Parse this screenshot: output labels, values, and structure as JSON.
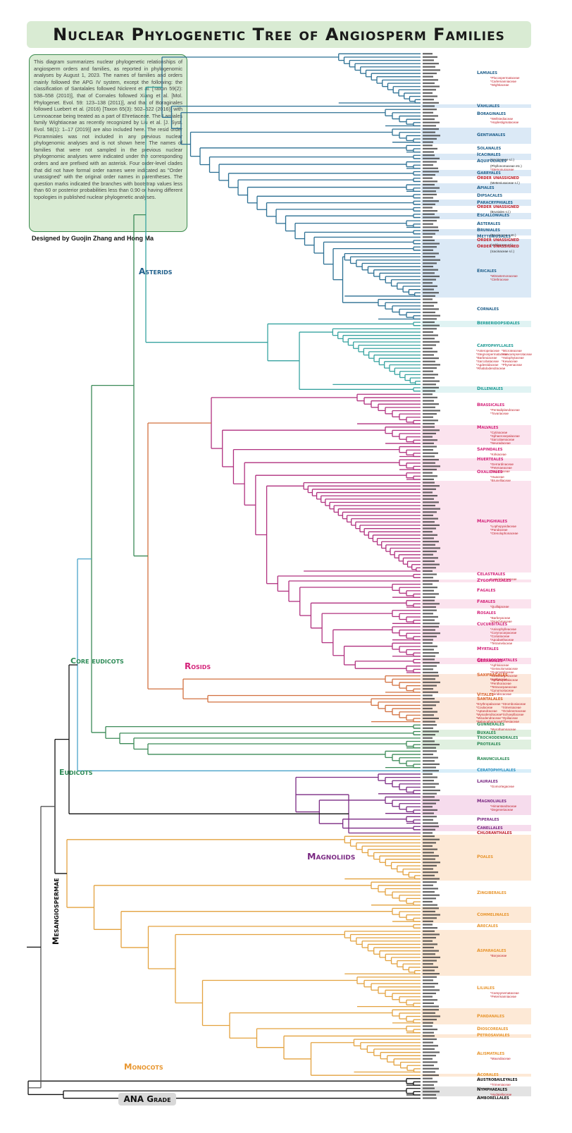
{
  "title": "Nuclear Phylogenetic Tree of Angiosperm Families",
  "description": "This diagram summarizes nuclear phylogenetic relationships of angiosperm orders and families, as reported in phylogenomic analyses by August 1, 2023. The names of families and orders mainly followed the APG IV system, except the following: the classification of Santalales followed Nickrent et al. [Taxon 59(2): 538–558 (2010)], that of Cornales followed Xiang et al. [Mol. Phylogenet. Evol. 59: 123–138 (2011)], and that of Boraginales followed Luebert et al. (2016) [Taxon 65(3): 502–522 (2016)] with Lennoaceae being treated as a part of Ehretiaceae. The Lamiales family Wightiaceae as recently recognized by Liu et al. [J. Syst. Evol. 58(1): 1–17 (2019)] are also included here. The resid order Picramniales was not included in any previous nuclear phylogenomic analyses and is not shown here. The names of families that were not sampled in the previous nuclear phylogenomic analyses were indicated under the corresponding orders and are prefixed with an asterisk. Four order-level clades that did not have formal order names were indicated as \"Order unassigned\" with the original order names in parentheses. The question marks indicated the branches with bootstrap values less than 60 or posterior probabilities less than 0.90 or having different topologies in published nuclear phylogenetic analyses.",
  "credit": "Designed by Guojin Zhang and Hong Ma",
  "clades": [
    {
      "name": "Asterids",
      "color": "#1f5f8b"
    },
    {
      "name": "Core eudicots",
      "color": "#2e8b57"
    },
    {
      "name": "Rosids",
      "color": "#d4237a"
    },
    {
      "name": "Eudicots",
      "color": "#2e8b57"
    },
    {
      "name": "Magnoliids",
      "color": "#7b2a83"
    },
    {
      "name": "Mesangiospermae",
      "color": "#111111"
    },
    {
      "name": "Monocots",
      "color": "#e8962f"
    },
    {
      "name": "ANA Grade",
      "color": "#111111"
    }
  ],
  "orders": [
    {
      "name": "Lamiales",
      "group": "asterid",
      "leaves": 16,
      "notes": [
        "*Plocospermataceae",
        "*Carlemanniaceae",
        "*Wightiaceae"
      ],
      "band": false
    },
    {
      "name": "Vahliales",
      "group": "asterid",
      "leaves": 1,
      "notes": [],
      "band": true
    },
    {
      "name": "Boraginales",
      "group": "asterid",
      "leaves": 6,
      "notes": [
        "*Wellstediaceae",
        "*Hoplestigmataceae"
      ],
      "band": false
    },
    {
      "name": "Gentianales",
      "group": "asterid",
      "leaves": 5,
      "notes": [],
      "band": true
    },
    {
      "name": "Solanales",
      "group": "asterid",
      "leaves": 3,
      "notes": [],
      "band": false
    },
    {
      "name": "Icacinales",
      "group": "asterid",
      "leaves": 2,
      "notes": [
        "(Icacinaceae s.l.)"
      ],
      "band": true
    },
    {
      "name": "Aquifoliales",
      "group": "asterid",
      "leaves": 3,
      "notes": [
        "(Phyllonomaceae etc.)",
        "*Stemonuraceae"
      ],
      "band": false
    },
    {
      "name": "Garryales",
      "group": "asterid",
      "leaves": 2,
      "notes": [],
      "band": true
    },
    {
      "name": "Order unassigned",
      "group": "asterid",
      "leaves": 2,
      "notes": [
        "(Metteniusaceae s.l.)"
      ],
      "band": false,
      "flag": true
    },
    {
      "name": "Apiales",
      "group": "asterid",
      "leaves": 3,
      "notes": [],
      "band": true
    },
    {
      "name": "Dipsacales",
      "group": "asterid",
      "leaves": 2,
      "notes": [],
      "band": false
    },
    {
      "name": "Paracryphiales",
      "group": "asterid",
      "leaves": 2,
      "notes": [],
      "band": true
    },
    {
      "name": "Order unassigned",
      "group": "asterid",
      "leaves": 2,
      "notes": [
        "(Bruniales s.l.)"
      ],
      "band": false,
      "flag": true
    },
    {
      "name": "Escalloniales",
      "group": "asterid",
      "leaves": 2,
      "notes": [],
      "band": true
    },
    {
      "name": "Asterales",
      "group": "asterid",
      "leaves": 3,
      "notes": [],
      "band": false
    },
    {
      "name": "Bruniales",
      "group": "asterid",
      "leaves": 2,
      "notes": [
        "(Bruniaceae s.str.)"
      ],
      "band": true
    },
    {
      "name": "Metteniusales",
      "group": "asterid",
      "leaves": 1,
      "notes": [],
      "band": false
    },
    {
      "name": "Order unassigned",
      "group": "asterid",
      "leaves": 2,
      "notes": [
        "(Vahliaceae s.l.)"
      ],
      "band": true,
      "flag": true
    },
    {
      "name": "Order unassigned",
      "group": "asterid",
      "leaves": 2,
      "notes": [
        "(Icacinaceae s.l.)"
      ],
      "band": true,
      "flag": true
    },
    {
      "name": "Ericales",
      "group": "asterid",
      "leaves": 14,
      "notes": [
        "*Mitrastemonaceae",
        "*Clethraceae"
      ],
      "band": true
    },
    {
      "name": "Cornales",
      "group": "asterid",
      "leaves": 7,
      "notes": [],
      "band": false
    },
    {
      "name": "Berberidopsidales",
      "group": "caryo",
      "leaves": 2,
      "notes": [],
      "band": true
    },
    {
      "name": "Caryophyllales",
      "group": "caryo",
      "leaves": 18,
      "notes": [
        "*Asteropeiaceae",
        "*Microteaceae",
        "*Stegnospermataceae",
        "*Anacampserotaceae",
        "*Barbeuiaceae",
        "*Halophytaceae",
        "*Sarcobataceae",
        "*Kewaceae",
        "*Agdestidaceae",
        "*Physenaceae",
        "*Rhabdodendraceae"
      ],
      "band": false
    },
    {
      "name": "Dilleniales",
      "group": "caryo",
      "leaves": 2,
      "notes": [],
      "band": true
    },
    {
      "name": "Brassicales",
      "group": "rosid",
      "leaves": 10,
      "notes": [
        "*Pentadiplandraceae",
        "*Tovariaceae"
      ],
      "band": false
    },
    {
      "name": "Malvales",
      "group": "rosid",
      "leaves": 6,
      "notes": [
        "*Cytinaceae",
        "*Sphaerosepalaceae",
        "*Sarcolaenaceae",
        "*Neuradaceae"
      ],
      "band": true
    },
    {
      "name": "Sapindales",
      "group": "rosid",
      "leaves": 4,
      "notes": [
        "*Kirkiaceae"
      ],
      "band": false
    },
    {
      "name": "Huerteales",
      "group": "rosid",
      "leaves": 4,
      "notes": [
        "*Gerrardinaceae",
        "*Petenaeaceae",
        "*Tapisciaceae"
      ],
      "band": true
    },
    {
      "name": "Oxalidales",
      "group": "rosid",
      "leaves": 3,
      "notes": [
        "*Huaceae",
        "*Brunelliaceae"
      ],
      "band": false
    },
    {
      "name": "Malpighiales",
      "group": "rosid",
      "leaves": 28,
      "notes": [
        "*Lophopyxidaceae",
        "*Pandaceae",
        "*Ctenolophonaceae"
      ],
      "band": true
    },
    {
      "name": "Celastrales",
      "group": "rosid",
      "leaves": 2,
      "notes": [
        "*Lepidobotryaceae"
      ],
      "band": false
    },
    {
      "name": "Zygophyllales",
      "group": "rosid",
      "leaves": 1,
      "notes": [],
      "band": true
    },
    {
      "name": "Fagales",
      "group": "rosid",
      "leaves": 5,
      "notes": [],
      "band": false
    },
    {
      "name": "Fabales",
      "group": "rosid",
      "leaves": 3,
      "notes": [
        "*Quillajaceae"
      ],
      "band": true
    },
    {
      "name": "Rosales",
      "group": "rosid",
      "leaves": 5,
      "notes": [
        "*Barbeyaceae",
        "*Dirachmaceae"
      ],
      "band": false
    },
    {
      "name": "Cucurbitales",
      "group": "rosid",
      "leaves": 5,
      "notes": [
        "*Anisophylleaceae",
        "*Corynocarpaceae",
        "*Coriariaceae",
        "*Apodanthaceae",
        "*Tetramelaceae"
      ],
      "band": true
    },
    {
      "name": "Myrtales",
      "group": "rosid",
      "leaves": 5,
      "notes": [],
      "band": false
    },
    {
      "name": "Geraniales",
      "group": "rosid",
      "leaves": 2,
      "notes": [],
      "band": true
    },
    {
      "name": "Crossosomatales",
      "group": "rosid",
      "leaves": 3,
      "notes": [
        "*Aphloiaceae",
        "*Geissolomataceae",
        "*Guamatelaceae",
        "*Strasburgeriaceae",
        "*Ixerbaceae"
      ],
      "band": false
    },
    {
      "name": "Saxifragales",
      "group": "saxi",
      "leaves": 6,
      "notes": [
        "*Aphanopetalaceae",
        "*Penthoraceae",
        "*Tetracarpaeaceae",
        "*Cynomoriaceae",
        "*Peridiscaceae"
      ],
      "band": true
    },
    {
      "name": "Vitales",
      "group": "saxi",
      "leaves": 1,
      "notes": [],
      "band": false
    },
    {
      "name": "Santalales",
      "group": "saxi",
      "leaves": 8,
      "notes": [
        "*Erythropalaceae",
        "*Strombosiaceae",
        "*Coulaceae",
        "*Ximeniaceae",
        "*Aptandraceae",
        "*Octoknemaceae",
        "*Mysodendraceae",
        "*Schoepfiaceae",
        "*Misodendraceae",
        "*Opiliaceae",
        "*Balanophoraceae",
        "*Thesiaceae"
      ],
      "band": true
    },
    {
      "name": "Gunnerales",
      "group": "eudicot",
      "leaves": 2,
      "notes": [
        "*Myrothamnaceae"
      ],
      "band": false
    },
    {
      "name": "Buxales",
      "group": "eudicot",
      "leaves": 2,
      "notes": [],
      "band": true
    },
    {
      "name": "Trochodendrales",
      "group": "eudicot",
      "leaves": 1,
      "notes": [],
      "band": false
    },
    {
      "name": "Proteales",
      "group": "eudicot",
      "leaves": 3,
      "notes": [],
      "band": true
    },
    {
      "name": "Ranunculales",
      "group": "eudicot",
      "leaves": 6,
      "notes": [],
      "band": false
    },
    {
      "name": "Ceratophyllales",
      "group": "cerato",
      "leaves": 1,
      "notes": [],
      "band": true
    },
    {
      "name": "Laurales",
      "group": "magnoliid",
      "leaves": 7,
      "notes": [
        "*Gomortegaceae"
      ],
      "band": false
    },
    {
      "name": "Magnoliales",
      "group": "magnoliid",
      "leaves": 6,
      "notes": [
        "*Himantandraceae",
        "*Degeneriaceae"
      ],
      "band": true
    },
    {
      "name": "Piperales",
      "group": "magnoliid",
      "leaves": 3,
      "notes": [],
      "band": false
    },
    {
      "name": "Canellales",
      "group": "magnoliid",
      "leaves": 2,
      "notes": [],
      "band": true
    },
    {
      "name": "Chloranthales",
      "group": "chlor",
      "leaves": 1,
      "notes": [],
      "band": false
    },
    {
      "name": "Poales",
      "group": "monocot",
      "leaves": 14,
      "notes": [],
      "band": true
    },
    {
      "name": "Zingiberales",
      "group": "monocot",
      "leaves": 8,
      "notes": [],
      "band": false
    },
    {
      "name": "Commelinales",
      "group": "monocot",
      "leaves": 5,
      "notes": [],
      "band": true
    },
    {
      "name": "Arecales",
      "group": "monocot",
      "leaves": 2,
      "notes": [],
      "band": false
    },
    {
      "name": "Asparagales",
      "group": "monocot",
      "leaves": 14,
      "notes": [
        "*Boryaceae"
      ],
      "band": true
    },
    {
      "name": "Liliales",
      "group": "monocot",
      "leaves": 10,
      "notes": [
        "*Campynemataceae",
        "*Petermanniaceae"
      ],
      "band": false
    },
    {
      "name": "Pandanales",
      "group": "monocot",
      "leaves": 5,
      "notes": [],
      "band": true
    },
    {
      "name": "Dioscoreales",
      "group": "monocot",
      "leaves": 3,
      "notes": [],
      "band": false
    },
    {
      "name": "Petrosaviales",
      "group": "monocot",
      "leaves": 1,
      "notes": [],
      "band": true
    },
    {
      "name": "Alismatales",
      "group": "monocot",
      "leaves": 11,
      "notes": [
        "*Maundiaceae"
      ],
      "band": false
    },
    {
      "name": "Acorales",
      "group": "monocot",
      "leaves": 1,
      "notes": [],
      "band": true
    },
    {
      "name": "Austrobaileyales",
      "group": "ana",
      "leaves": 3,
      "notes": [
        "*Trimeniaceae"
      ],
      "band": false
    },
    {
      "name": "Nymphaeales",
      "group": "ana",
      "leaves": 3,
      "notes": [
        "*Hydatellaceae"
      ],
      "band": true
    },
    {
      "name": "Amborellales",
      "group": "ana",
      "leaves": 1,
      "notes": [],
      "band": false
    }
  ],
  "group_colors": {
    "asterid": {
      "line": "#2b6f93",
      "text": "#1f5f8b",
      "band": "#dbe9f6"
    },
    "caryo": {
      "line": "#37a3a0",
      "text": "#1c9a94",
      "band": "#e0f3f3"
    },
    "rosid": {
      "line": "#b0307f",
      "text": "#d4237a",
      "band": "#fbe3ee"
    },
    "saxi": {
      "line": "#d2703f",
      "text": "#d9622b",
      "band": "#fce8dc"
    },
    "eudicot": {
      "line": "#3b8a57",
      "text": "#2e8b57",
      "band": "#e0f0e0"
    },
    "cerato": {
      "line": "#4aa3c9",
      "text": "#2a8fc0",
      "band": "#d8eef9"
    },
    "magnoliid": {
      "line": "#7b2a83",
      "text": "#7b2a83",
      "band": "#f6dced"
    },
    "chlor": {
      "line": "#c0202a",
      "text": "#c0202a",
      "band": "#ffffff"
    },
    "monocot": {
      "line": "#e3a23f",
      "text": "#e8962f",
      "band": "#fde9d6"
    },
    "ana": {
      "line": "#111111",
      "text": "#111111",
      "band": "#e3e3e3"
    }
  },
  "note_color": "#c0202a",
  "uncertain_mark": "?"
}
